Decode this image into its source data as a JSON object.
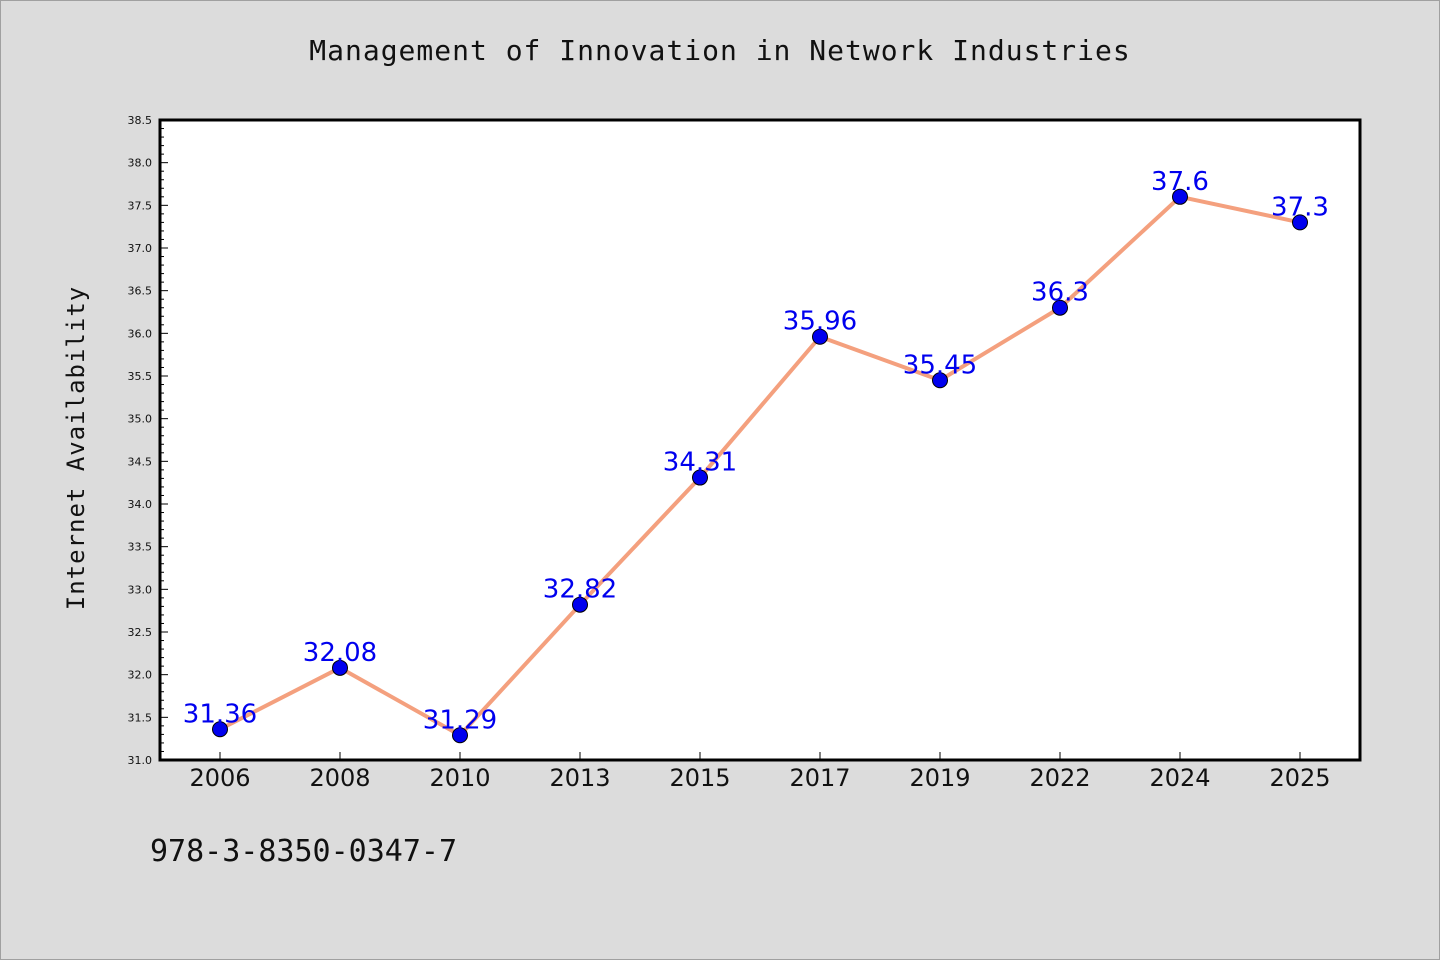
{
  "chart_data": {
    "type": "line",
    "title": "Management of Innovation in Network Industries",
    "ylabel": "Internet Availability",
    "xlabel": "",
    "categories": [
      "2006",
      "2008",
      "2010",
      "2013",
      "2015",
      "2017",
      "2019",
      "2022",
      "2024",
      "2025"
    ],
    "series": [
      {
        "values": [
          31.36,
          32.08,
          31.29,
          32.82,
          34.31,
          35.96,
          35.45,
          36.3,
          37.6,
          37.3
        ]
      }
    ],
    "data_labels": [
      "31.36",
      "32.08",
      "31.29",
      "32.82",
      "34.31",
      "35.96",
      "35.45",
      "36.3",
      "37.6",
      "37.3"
    ],
    "ylim": [
      31.0,
      38.5
    ],
    "yticks": [
      "31.0",
      "31.5",
      "32.0",
      "32.5",
      "33.0",
      "33.5",
      "34.0",
      "34.5",
      "35.0",
      "35.5",
      "36.0",
      "36.5",
      "37.0",
      "37.5",
      "38.0",
      "38.5"
    ],
    "grid": false,
    "line_color": "#f4a07e",
    "marker_color": "#0000ee",
    "label_color": "#0000ee"
  },
  "footer": {
    "isbn": "978-3-8350-0347-7"
  }
}
